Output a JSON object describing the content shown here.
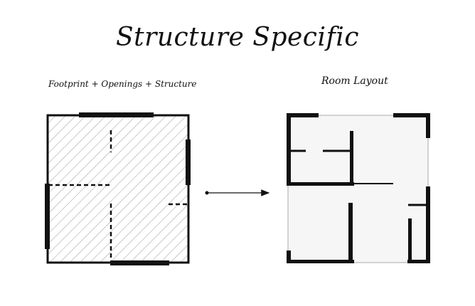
{
  "title": "Structure Specific",
  "left_panel": {
    "label": "Footprint + Openings + Structure"
  },
  "right_panel": {
    "label": "Room Layout"
  },
  "colors": {
    "ink": "#111111",
    "hatch": "#9a9a9a",
    "room_fill": "#f6f6f6",
    "outline": "#aaaaaa"
  }
}
